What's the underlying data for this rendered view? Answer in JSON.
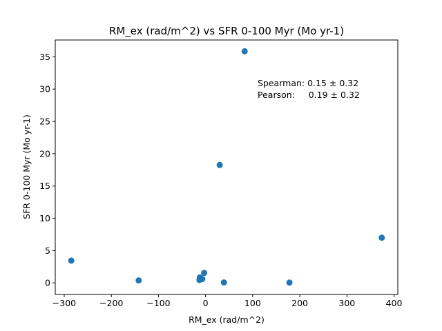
{
  "chart_data": {
    "type": "scatter",
    "title": "RM_ex (rad/m^2) vs SFR 0-100 Myr (Mo yr-1)",
    "xlabel": "RM_ex (rad/m^2)",
    "ylabel": "SFR 0-100 Myr (Mo yr-1)",
    "xlim": [
      -319,
      408
    ],
    "ylim": [
      -1.79,
      37.6
    ],
    "xticks": [
      -300,
      -200,
      -100,
      0,
      100,
      200,
      300,
      400
    ],
    "xtick_labels": [
      "−300",
      "−200",
      "−100",
      "0",
      "100",
      "200",
      "300",
      "400"
    ],
    "yticks": [
      0,
      5,
      10,
      15,
      20,
      25,
      30,
      35
    ],
    "ytick_labels": [
      "0",
      "5",
      "10",
      "15",
      "20",
      "25",
      "30",
      "35"
    ],
    "grid": false,
    "marker_color": "#1f77b4",
    "points": [
      {
        "x": -285,
        "y": 3.45
      },
      {
        "x": -142,
        "y": 0.38
      },
      {
        "x": -13,
        "y": 0.45
      },
      {
        "x": -12,
        "y": 0.85
      },
      {
        "x": -7,
        "y": 0.6
      },
      {
        "x": -3,
        "y": 1.55
      },
      {
        "x": 30,
        "y": 18.25
      },
      {
        "x": 39,
        "y": 0.07
      },
      {
        "x": 83,
        "y": 35.85
      },
      {
        "x": 178,
        "y": 0.05
      },
      {
        "x": 374,
        "y": 7.0
      }
    ],
    "annotations": [
      "Spearman: 0.15 ± 0.32",
      "Pearson:     0.19 ± 0.32"
    ]
  }
}
